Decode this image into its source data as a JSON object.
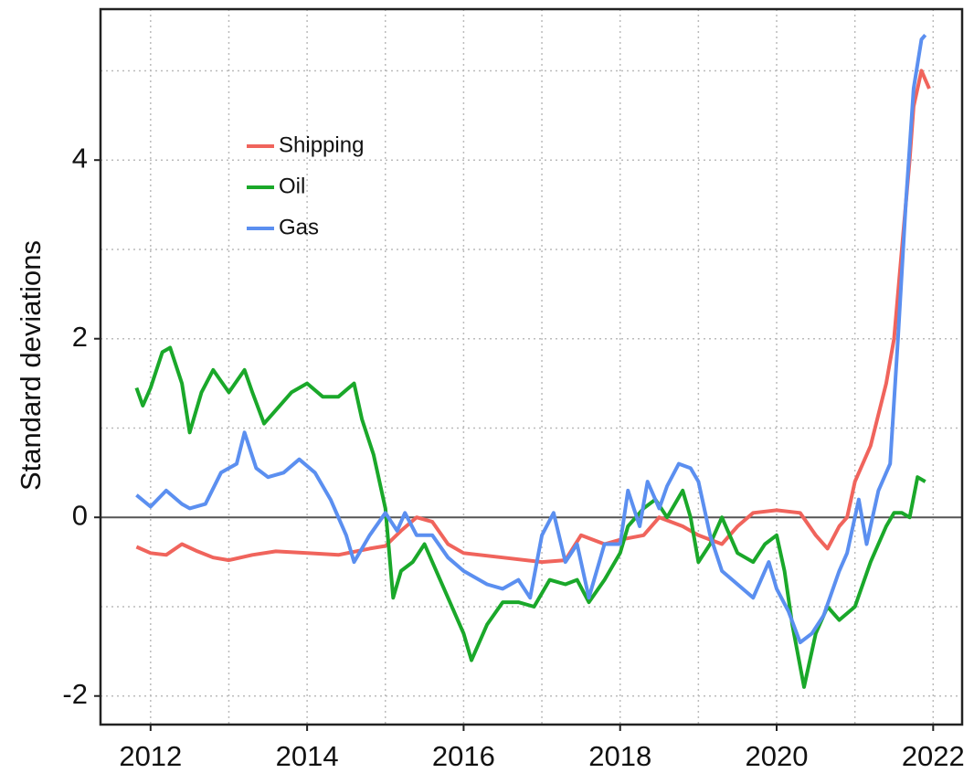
{
  "chart_data": {
    "type": "line",
    "y_label": "Standard deviations",
    "xlim": [
      2011.36,
      2022.37
    ],
    "ylim": [
      -2.32,
      5.69
    ],
    "xticks": [
      2012,
      2014,
      2016,
      2018,
      2020,
      2022
    ],
    "yticks": [
      -2,
      0,
      2,
      4
    ],
    "x_minor_ticks": [
      2013,
      2015,
      2017,
      2019,
      2021
    ],
    "y_minor_ticks": [
      -1,
      1,
      3,
      5
    ],
    "grid": true,
    "legend": "upper left",
    "series": [
      {
        "name": "Shipping",
        "color": "#f0645c",
        "x": [
          2011.82,
          2012.0,
          2012.2,
          2012.4,
          2012.6,
          2012.8,
          2013.0,
          2013.3,
          2013.6,
          2014.0,
          2014.4,
          2014.8,
          2015.0,
          2015.2,
          2015.4,
          2015.6,
          2015.8,
          2016.0,
          2016.5,
          2017.0,
          2017.3,
          2017.5,
          2017.8,
          2018.0,
          2018.3,
          2018.5,
          2018.8,
          2019.0,
          2019.3,
          2019.5,
          2019.7,
          2020.0,
          2020.3,
          2020.5,
          2020.65,
          2020.8,
          2020.9,
          2021.0,
          2021.2,
          2021.4,
          2021.5,
          2021.6,
          2021.7,
          2021.75,
          2021.85,
          2021.95
        ],
        "values": [
          -0.33,
          -0.4,
          -0.42,
          -0.3,
          -0.38,
          -0.45,
          -0.48,
          -0.42,
          -0.38,
          -0.4,
          -0.42,
          -0.35,
          -0.32,
          -0.15,
          0.0,
          -0.05,
          -0.3,
          -0.4,
          -0.45,
          -0.5,
          -0.48,
          -0.2,
          -0.3,
          -0.25,
          -0.2,
          0.0,
          -0.1,
          -0.2,
          -0.3,
          -0.1,
          0.05,
          0.08,
          0.05,
          -0.2,
          -0.35,
          -0.1,
          0.0,
          0.4,
          0.8,
          1.5,
          2.0,
          3.0,
          4.0,
          4.6,
          5.0,
          4.8
        ]
      },
      {
        "name": "Oil",
        "color": "#1aa82a",
        "x": [
          2011.82,
          2011.9,
          2012.0,
          2012.15,
          2012.25,
          2012.4,
          2012.5,
          2012.65,
          2012.8,
          2013.0,
          2013.2,
          2013.3,
          2013.45,
          2013.6,
          2013.8,
          2014.0,
          2014.2,
          2014.4,
          2014.6,
          2014.7,
          2014.85,
          2015.0,
          2015.1,
          2015.2,
          2015.35,
          2015.5,
          2015.7,
          2015.8,
          2016.0,
          2016.1,
          2016.3,
          2016.5,
          2016.7,
          2016.9,
          2017.1,
          2017.3,
          2017.45,
          2017.6,
          2017.8,
          2018.0,
          2018.1,
          2018.3,
          2018.45,
          2018.6,
          2018.8,
          2018.9,
          2019.0,
          2019.15,
          2019.3,
          2019.5,
          2019.7,
          2019.85,
          2020.0,
          2020.1,
          2020.2,
          2020.35,
          2020.5,
          2020.65,
          2020.8,
          2021.0,
          2021.2,
          2021.4,
          2021.5,
          2021.6,
          2021.7,
          2021.8,
          2021.9
        ],
        "values": [
          1.45,
          1.25,
          1.45,
          1.85,
          1.9,
          1.5,
          0.95,
          1.4,
          1.65,
          1.4,
          1.65,
          1.4,
          1.05,
          1.2,
          1.4,
          1.5,
          1.35,
          1.35,
          1.5,
          1.1,
          0.7,
          0.1,
          -0.9,
          -0.6,
          -0.5,
          -0.3,
          -0.7,
          -0.9,
          -1.3,
          -1.6,
          -1.2,
          -0.95,
          -0.95,
          -1.0,
          -0.7,
          -0.75,
          -0.7,
          -0.95,
          -0.7,
          -0.4,
          -0.1,
          0.1,
          0.2,
          0.0,
          0.3,
          0.0,
          -0.5,
          -0.3,
          0.0,
          -0.4,
          -0.5,
          -0.3,
          -0.2,
          -0.6,
          -1.2,
          -1.9,
          -1.3,
          -1.0,
          -1.15,
          -1.0,
          -0.5,
          -0.1,
          0.05,
          0.05,
          0.0,
          0.45,
          0.4
        ]
      },
      {
        "name": "Gas",
        "color": "#5b8ff0",
        "x": [
          2011.82,
          2012.0,
          2012.2,
          2012.4,
          2012.5,
          2012.7,
          2012.9,
          2013.1,
          2013.2,
          2013.35,
          2013.5,
          2013.7,
          2013.9,
          2014.1,
          2014.3,
          2014.5,
          2014.6,
          2014.8,
          2015.0,
          2015.15,
          2015.25,
          2015.4,
          2015.6,
          2015.8,
          2016.0,
          2016.3,
          2016.5,
          2016.7,
          2016.85,
          2017.0,
          2017.15,
          2017.3,
          2017.45,
          2017.6,
          2017.8,
          2018.0,
          2018.1,
          2018.25,
          2018.35,
          2018.5,
          2018.6,
          2018.75,
          2018.9,
          2019.0,
          2019.15,
          2019.3,
          2019.5,
          2019.7,
          2019.9,
          2020.0,
          2020.15,
          2020.3,
          2020.45,
          2020.6,
          2020.8,
          2020.9,
          2021.05,
          2021.15,
          2021.3,
          2021.45,
          2021.55,
          2021.65,
          2021.75,
          2021.85,
          2021.9
        ],
        "values": [
          0.25,
          0.12,
          0.3,
          0.15,
          0.1,
          0.15,
          0.5,
          0.6,
          0.95,
          0.55,
          0.45,
          0.5,
          0.65,
          0.5,
          0.2,
          -0.2,
          -0.5,
          -0.2,
          0.05,
          -0.15,
          0.05,
          -0.2,
          -0.2,
          -0.45,
          -0.6,
          -0.75,
          -0.8,
          -0.7,
          -0.9,
          -0.2,
          0.05,
          -0.5,
          -0.3,
          -0.9,
          -0.3,
          -0.3,
          0.3,
          -0.1,
          0.4,
          0.1,
          0.35,
          0.6,
          0.55,
          0.4,
          -0.2,
          -0.6,
          -0.75,
          -0.9,
          -0.5,
          -0.8,
          -1.05,
          -1.4,
          -1.3,
          -1.1,
          -0.6,
          -0.4,
          0.2,
          -0.3,
          0.3,
          0.6,
          2.0,
          3.5,
          4.8,
          5.35,
          5.4
        ]
      }
    ]
  }
}
